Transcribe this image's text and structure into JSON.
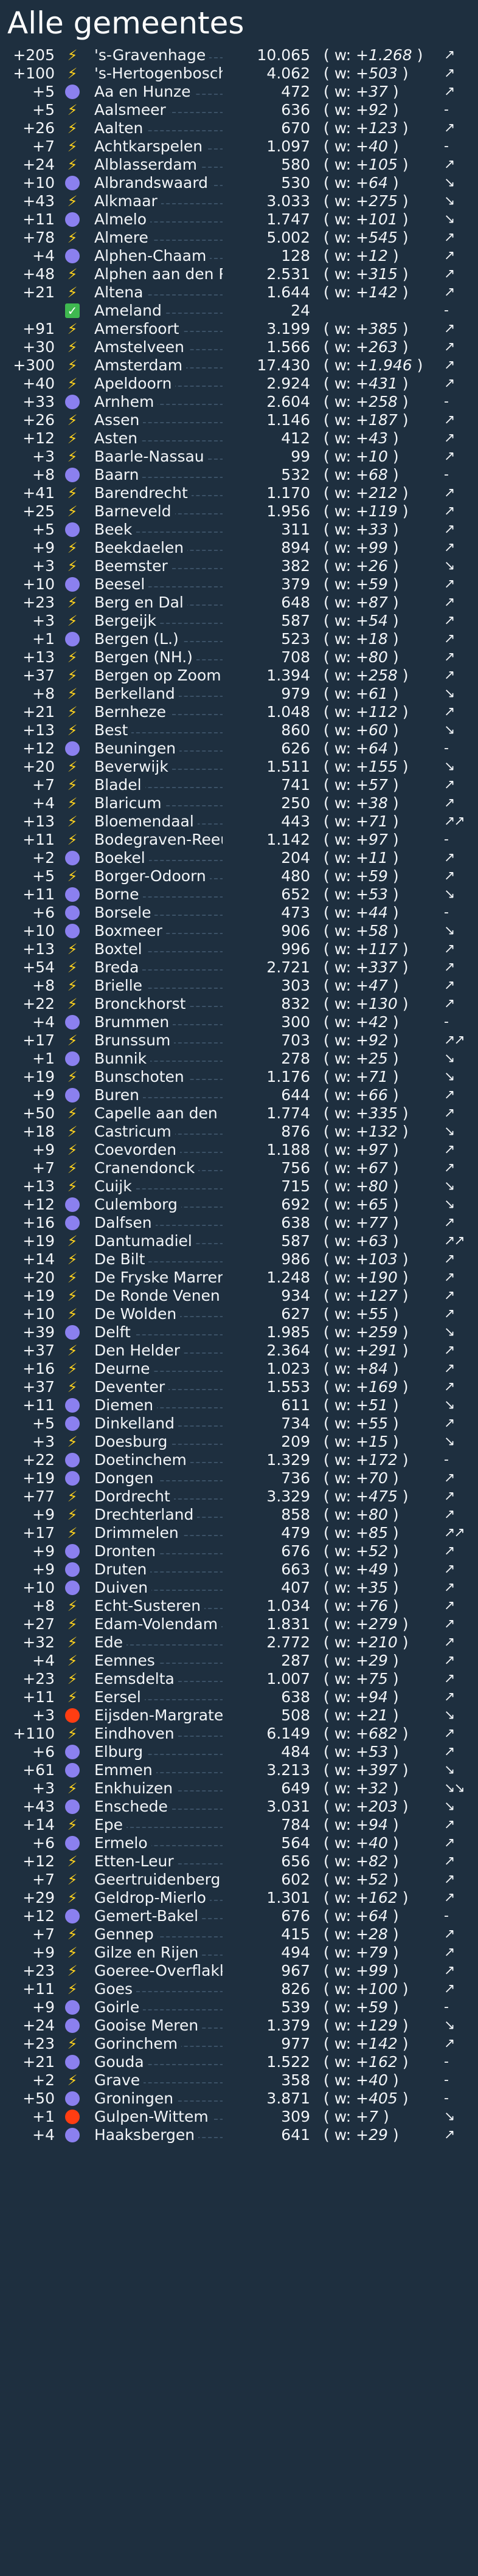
{
  "page": {
    "title": "Alle gemeentes"
  },
  "colors": {
    "background": "#1e2f3f",
    "circle": "#8b80ef",
    "circle_red": "#ff3d12",
    "bolt": "#ffd21d",
    "check": "#3fb950"
  },
  "rows": [
    {
      "delta": "+205",
      "icon": "bolt-icon",
      "name": "'s-Gravenhage",
      "value": "10.065",
      "w": "+1.268",
      "trend": "↗"
    },
    {
      "delta": "+100",
      "icon": "bolt-icon",
      "name": "'s-Hertogenbosch",
      "value": "4.062",
      "w": "+503",
      "trend": "↗"
    },
    {
      "delta": "+5",
      "icon": "circle-icon",
      "name": "Aa en Hunze",
      "value": "472",
      "w": "+37",
      "trend": "↗"
    },
    {
      "delta": "+5",
      "icon": "bolt-icon",
      "name": "Aalsmeer",
      "value": "636",
      "w": "+92",
      "trend": "-"
    },
    {
      "delta": "+26",
      "icon": "bolt-icon",
      "name": "Aalten",
      "value": "670",
      "w": "+123",
      "trend": "↗"
    },
    {
      "delta": "+7",
      "icon": "bolt-icon",
      "name": "Achtkarspelen",
      "value": "1.097",
      "w": "+40",
      "trend": "-"
    },
    {
      "delta": "+24",
      "icon": "bolt-icon",
      "name": "Alblasserdam",
      "value": "580",
      "w": "+105",
      "trend": "↗"
    },
    {
      "delta": "+10",
      "icon": "circle-icon",
      "name": "Albrandswaard",
      "value": "530",
      "w": "+64",
      "trend": "↘"
    },
    {
      "delta": "+43",
      "icon": "bolt-icon",
      "name": "Alkmaar",
      "value": "3.033",
      "w": "+275",
      "trend": "↘"
    },
    {
      "delta": "+11",
      "icon": "circle-icon",
      "name": "Almelo",
      "value": "1.747",
      "w": "+101",
      "trend": "↘"
    },
    {
      "delta": "+78",
      "icon": "bolt-icon",
      "name": "Almere",
      "value": "5.002",
      "w": "+545",
      "trend": "↗"
    },
    {
      "delta": "+4",
      "icon": "circle-icon",
      "name": "Alphen-Chaam",
      "value": "128",
      "w": "+12",
      "trend": "↗"
    },
    {
      "delta": "+48",
      "icon": "bolt-icon",
      "name": "Alphen aan den Rijn",
      "value": "2.531",
      "w": "+315",
      "trend": "↗"
    },
    {
      "delta": "+21",
      "icon": "bolt-icon",
      "name": "Altena",
      "value": "1.644",
      "w": "+142",
      "trend": "↗"
    },
    {
      "delta": "",
      "icon": "check-icon",
      "name": "Ameland",
      "value": "24",
      "w": "",
      "trend": "-"
    },
    {
      "delta": "+91",
      "icon": "bolt-icon",
      "name": "Amersfoort",
      "value": "3.199",
      "w": "+385",
      "trend": "↗"
    },
    {
      "delta": "+30",
      "icon": "bolt-icon",
      "name": "Amstelveen",
      "value": "1.566",
      "w": "+263",
      "trend": "↗"
    },
    {
      "delta": "+300",
      "icon": "bolt-icon",
      "name": "Amsterdam",
      "value": "17.430",
      "w": "+1.946",
      "trend": "↗"
    },
    {
      "delta": "+40",
      "icon": "bolt-icon",
      "name": "Apeldoorn",
      "value": "2.924",
      "w": "+431",
      "trend": "↗"
    },
    {
      "delta": "+33",
      "icon": "circle-icon",
      "name": "Arnhem",
      "value": "2.604",
      "w": "+258",
      "trend": "-"
    },
    {
      "delta": "+26",
      "icon": "bolt-icon",
      "name": "Assen",
      "value": "1.146",
      "w": "+187",
      "trend": "↗"
    },
    {
      "delta": "+12",
      "icon": "bolt-icon",
      "name": "Asten",
      "value": "412",
      "w": "+43",
      "trend": "↗"
    },
    {
      "delta": "+3",
      "icon": "bolt-icon",
      "name": "Baarle-Nassau",
      "value": "99",
      "w": "+10",
      "trend": "↗"
    },
    {
      "delta": "+8",
      "icon": "circle-icon",
      "name": "Baarn",
      "value": "532",
      "w": "+68",
      "trend": "-"
    },
    {
      "delta": "+41",
      "icon": "bolt-icon",
      "name": "Barendrecht",
      "value": "1.170",
      "w": "+212",
      "trend": "↗"
    },
    {
      "delta": "+25",
      "icon": "bolt-icon",
      "name": "Barneveld",
      "value": "1.956",
      "w": "+119",
      "trend": "↗"
    },
    {
      "delta": "+5",
      "icon": "circle-icon",
      "name": "Beek",
      "value": "311",
      "w": "+33",
      "trend": "↗"
    },
    {
      "delta": "+9",
      "icon": "bolt-icon",
      "name": "Beekdaelen",
      "value": "894",
      "w": "+99",
      "trend": "↗"
    },
    {
      "delta": "+3",
      "icon": "bolt-icon",
      "name": "Beemster",
      "value": "382",
      "w": "+26",
      "trend": "↘"
    },
    {
      "delta": "+10",
      "icon": "circle-icon",
      "name": "Beesel",
      "value": "379",
      "w": "+59",
      "trend": "↗"
    },
    {
      "delta": "+23",
      "icon": "bolt-icon",
      "name": "Berg en Dal",
      "value": "648",
      "w": "+87",
      "trend": "↗"
    },
    {
      "delta": "+3",
      "icon": "bolt-icon",
      "name": "Bergeijk",
      "value": "587",
      "w": "+54",
      "trend": "↗"
    },
    {
      "delta": "+1",
      "icon": "circle-icon",
      "name": "Bergen (L.)",
      "value": "523",
      "w": "+18",
      "trend": "↗"
    },
    {
      "delta": "+13",
      "icon": "bolt-icon",
      "name": "Bergen (NH.)",
      "value": "708",
      "w": "+80",
      "trend": "↗"
    },
    {
      "delta": "+37",
      "icon": "bolt-icon",
      "name": "Bergen op Zoom",
      "value": "1.394",
      "w": "+258",
      "trend": "↗"
    },
    {
      "delta": "+8",
      "icon": "bolt-icon",
      "name": "Berkelland",
      "value": "979",
      "w": "+61",
      "trend": "↘"
    },
    {
      "delta": "+21",
      "icon": "bolt-icon",
      "name": "Bernheze",
      "value": "1.048",
      "w": "+112",
      "trend": "↗"
    },
    {
      "delta": "+13",
      "icon": "bolt-icon",
      "name": "Best",
      "value": "860",
      "w": "+60",
      "trend": "↘"
    },
    {
      "delta": "+12",
      "icon": "circle-icon",
      "name": "Beuningen",
      "value": "626",
      "w": "+64",
      "trend": "-"
    },
    {
      "delta": "+20",
      "icon": "bolt-icon",
      "name": "Beverwijk",
      "value": "1.511",
      "w": "+155",
      "trend": "↘"
    },
    {
      "delta": "+7",
      "icon": "bolt-icon",
      "name": "Bladel",
      "value": "741",
      "w": "+57",
      "trend": "↗"
    },
    {
      "delta": "+4",
      "icon": "bolt-icon",
      "name": "Blaricum",
      "value": "250",
      "w": "+38",
      "trend": "↗"
    },
    {
      "delta": "+13",
      "icon": "bolt-icon",
      "name": "Bloemendaal",
      "value": "443",
      "w": "+71",
      "trend": "↗↗"
    },
    {
      "delta": "+11",
      "icon": "bolt-icon",
      "name": "Bodegraven-Reeuwijk",
      "value": "1.142",
      "w": "+97",
      "trend": "-"
    },
    {
      "delta": "+2",
      "icon": "circle-icon",
      "name": "Boekel",
      "value": "204",
      "w": "+11",
      "trend": "↗"
    },
    {
      "delta": "+5",
      "icon": "bolt-icon",
      "name": "Borger-Odoorn",
      "value": "480",
      "w": "+59",
      "trend": "↗"
    },
    {
      "delta": "+11",
      "icon": "circle-icon",
      "name": "Borne",
      "value": "652",
      "w": "+53",
      "trend": "↘"
    },
    {
      "delta": "+6",
      "icon": "circle-icon",
      "name": "Borsele",
      "value": "473",
      "w": "+44",
      "trend": "-"
    },
    {
      "delta": "+10",
      "icon": "circle-icon",
      "name": "Boxmeer",
      "value": "906",
      "w": "+58",
      "trend": "↘"
    },
    {
      "delta": "+13",
      "icon": "bolt-icon",
      "name": "Boxtel",
      "value": "996",
      "w": "+117",
      "trend": "↗"
    },
    {
      "delta": "+54",
      "icon": "bolt-icon",
      "name": "Breda",
      "value": "2.721",
      "w": "+337",
      "trend": "↗"
    },
    {
      "delta": "+8",
      "icon": "bolt-icon",
      "name": "Brielle",
      "value": "303",
      "w": "+47",
      "trend": "↗"
    },
    {
      "delta": "+22",
      "icon": "bolt-icon",
      "name": "Bronckhorst",
      "value": "832",
      "w": "+130",
      "trend": "↗"
    },
    {
      "delta": "+4",
      "icon": "circle-icon",
      "name": "Brummen",
      "value": "300",
      "w": "+42",
      "trend": "-"
    },
    {
      "delta": "+17",
      "icon": "bolt-icon",
      "name": "Brunssum",
      "value": "703",
      "w": "+92",
      "trend": "↗↗"
    },
    {
      "delta": "+1",
      "icon": "circle-icon",
      "name": "Bunnik",
      "value": "278",
      "w": "+25",
      "trend": "↘"
    },
    {
      "delta": "+19",
      "icon": "bolt-icon",
      "name": "Bunschoten",
      "value": "1.176",
      "w": "+71",
      "trend": "↘"
    },
    {
      "delta": "+9",
      "icon": "circle-icon",
      "name": "Buren",
      "value": "644",
      "w": "+66",
      "trend": "↗"
    },
    {
      "delta": "+50",
      "icon": "bolt-icon",
      "name": "Capelle aan den IJssel",
      "value": "1.774",
      "w": "+335",
      "trend": "↗"
    },
    {
      "delta": "+18",
      "icon": "bolt-icon",
      "name": "Castricum",
      "value": "876",
      "w": "+132",
      "trend": "↘"
    },
    {
      "delta": "+9",
      "icon": "bolt-icon",
      "name": "Coevorden",
      "value": "1.188",
      "w": "+97",
      "trend": "↗"
    },
    {
      "delta": "+7",
      "icon": "bolt-icon",
      "name": "Cranendonck",
      "value": "756",
      "w": "+67",
      "trend": "↗"
    },
    {
      "delta": "+13",
      "icon": "bolt-icon",
      "name": "Cuijk",
      "value": "715",
      "w": "+80",
      "trend": "↘"
    },
    {
      "delta": "+12",
      "icon": "circle-icon",
      "name": "Culemborg",
      "value": "692",
      "w": "+65",
      "trend": "↘"
    },
    {
      "delta": "+16",
      "icon": "circle-icon",
      "name": "Dalfsen",
      "value": "638",
      "w": "+77",
      "trend": "↗"
    },
    {
      "delta": "+19",
      "icon": "bolt-icon",
      "name": "Dantumadiel",
      "value": "587",
      "w": "+63",
      "trend": "↗↗"
    },
    {
      "delta": "+14",
      "icon": "bolt-icon",
      "name": "De Bilt",
      "value": "986",
      "w": "+103",
      "trend": "↗"
    },
    {
      "delta": "+20",
      "icon": "bolt-icon",
      "name": "De Fryske Marren",
      "value": "1.248",
      "w": "+190",
      "trend": "↗"
    },
    {
      "delta": "+19",
      "icon": "bolt-icon",
      "name": "De Ronde Venen",
      "value": "934",
      "w": "+127",
      "trend": "↗"
    },
    {
      "delta": "+10",
      "icon": "bolt-icon",
      "name": "De Wolden",
      "value": "627",
      "w": "+55",
      "trend": "↗"
    },
    {
      "delta": "+39",
      "icon": "circle-icon",
      "name": "Delft",
      "value": "1.985",
      "w": "+259",
      "trend": "↘"
    },
    {
      "delta": "+37",
      "icon": "bolt-icon",
      "name": "Den Helder",
      "value": "2.364",
      "w": "+291",
      "trend": "↗"
    },
    {
      "delta": "+16",
      "icon": "bolt-icon",
      "name": "Deurne",
      "value": "1.023",
      "w": "+84",
      "trend": "↗"
    },
    {
      "delta": "+37",
      "icon": "bolt-icon",
      "name": "Deventer",
      "value": "1.553",
      "w": "+169",
      "trend": "↗"
    },
    {
      "delta": "+11",
      "icon": "circle-icon",
      "name": "Diemen",
      "value": "611",
      "w": "+51",
      "trend": "↘"
    },
    {
      "delta": "+5",
      "icon": "circle-icon",
      "name": "Dinkelland",
      "value": "734",
      "w": "+55",
      "trend": "↗"
    },
    {
      "delta": "+3",
      "icon": "bolt-icon",
      "name": "Doesburg",
      "value": "209",
      "w": "+15",
      "trend": "↘"
    },
    {
      "delta": "+22",
      "icon": "circle-icon",
      "name": "Doetinchem",
      "value": "1.329",
      "w": "+172",
      "trend": "-"
    },
    {
      "delta": "+19",
      "icon": "circle-icon",
      "name": "Dongen",
      "value": "736",
      "w": "+70",
      "trend": "↗"
    },
    {
      "delta": "+77",
      "icon": "bolt-icon",
      "name": "Dordrecht",
      "value": "3.329",
      "w": "+475",
      "trend": "↗"
    },
    {
      "delta": "+9",
      "icon": "bolt-icon",
      "name": "Drechterland",
      "value": "858",
      "w": "+80",
      "trend": "↗"
    },
    {
      "delta": "+17",
      "icon": "bolt-icon",
      "name": "Drimmelen",
      "value": "479",
      "w": "+85",
      "trend": "↗↗"
    },
    {
      "delta": "+9",
      "icon": "circle-icon",
      "name": "Dronten",
      "value": "676",
      "w": "+52",
      "trend": "↗"
    },
    {
      "delta": "+9",
      "icon": "circle-icon",
      "name": "Druten",
      "value": "663",
      "w": "+49",
      "trend": "↗"
    },
    {
      "delta": "+10",
      "icon": "circle-icon",
      "name": "Duiven",
      "value": "407",
      "w": "+35",
      "trend": "↗"
    },
    {
      "delta": "+8",
      "icon": "bolt-icon",
      "name": "Echt-Susteren",
      "value": "1.034",
      "w": "+76",
      "trend": "↗"
    },
    {
      "delta": "+27",
      "icon": "bolt-icon",
      "name": "Edam-Volendam",
      "value": "1.831",
      "w": "+279",
      "trend": "↗"
    },
    {
      "delta": "+32",
      "icon": "bolt-icon",
      "name": "Ede",
      "value": "2.772",
      "w": "+210",
      "trend": "↗"
    },
    {
      "delta": "+4",
      "icon": "bolt-icon",
      "name": "Eemnes",
      "value": "287",
      "w": "+29",
      "trend": "↗"
    },
    {
      "delta": "+23",
      "icon": "bolt-icon",
      "name": "Eemsdelta",
      "value": "1.007",
      "w": "+75",
      "trend": "↗"
    },
    {
      "delta": "+11",
      "icon": "bolt-icon",
      "name": "Eersel",
      "value": "638",
      "w": "+94",
      "trend": "↗"
    },
    {
      "delta": "+3",
      "icon": "red-circle-icon",
      "name": "Eijsden-Margraten",
      "value": "508",
      "w": "+21",
      "trend": "↘"
    },
    {
      "delta": "+110",
      "icon": "bolt-icon",
      "name": "Eindhoven",
      "value": "6.149",
      "w": "+682",
      "trend": "↗"
    },
    {
      "delta": "+6",
      "icon": "circle-icon",
      "name": "Elburg",
      "value": "484",
      "w": "+53",
      "trend": "↗"
    },
    {
      "delta": "+61",
      "icon": "circle-icon",
      "name": "Emmen",
      "value": "3.213",
      "w": "+397",
      "trend": "↘"
    },
    {
      "delta": "+3",
      "icon": "bolt-icon",
      "name": "Enkhuizen",
      "value": "649",
      "w": "+32",
      "trend": "↘↘"
    },
    {
      "delta": "+43",
      "icon": "circle-icon",
      "name": "Enschede",
      "value": "3.031",
      "w": "+203",
      "trend": "↘"
    },
    {
      "delta": "+14",
      "icon": "bolt-icon",
      "name": "Epe",
      "value": "784",
      "w": "+94",
      "trend": "↗"
    },
    {
      "delta": "+6",
      "icon": "circle-icon",
      "name": "Ermelo",
      "value": "564",
      "w": "+40",
      "trend": "↗"
    },
    {
      "delta": "+12",
      "icon": "bolt-icon",
      "name": "Etten-Leur",
      "value": "656",
      "w": "+82",
      "trend": "↗"
    },
    {
      "delta": "+7",
      "icon": "bolt-icon",
      "name": "Geertruidenberg",
      "value": "602",
      "w": "+52",
      "trend": "↗"
    },
    {
      "delta": "+29",
      "icon": "bolt-icon",
      "name": "Geldrop-Mierlo",
      "value": "1.301",
      "w": "+162",
      "trend": "↗"
    },
    {
      "delta": "+12",
      "icon": "circle-icon",
      "name": "Gemert-Bakel",
      "value": "676",
      "w": "+64",
      "trend": "-"
    },
    {
      "delta": "+7",
      "icon": "bolt-icon",
      "name": "Gennep",
      "value": "415",
      "w": "+28",
      "trend": "↗"
    },
    {
      "delta": "+9",
      "icon": "bolt-icon",
      "name": "Gilze en Rijen",
      "value": "494",
      "w": "+79",
      "trend": "↗"
    },
    {
      "delta": "+23",
      "icon": "bolt-icon",
      "name": "Goeree-Overflakkee",
      "value": "967",
      "w": "+99",
      "trend": "↗"
    },
    {
      "delta": "+11",
      "icon": "bolt-icon",
      "name": "Goes",
      "value": "826",
      "w": "+100",
      "trend": "↗"
    },
    {
      "delta": "+9",
      "icon": "circle-icon",
      "name": "Goirle",
      "value": "539",
      "w": "+59",
      "trend": "-"
    },
    {
      "delta": "+24",
      "icon": "circle-icon",
      "name": "Gooise Meren",
      "value": "1.379",
      "w": "+129",
      "trend": "↘"
    },
    {
      "delta": "+23",
      "icon": "bolt-icon",
      "name": "Gorinchem",
      "value": "977",
      "w": "+142",
      "trend": "↗"
    },
    {
      "delta": "+21",
      "icon": "circle-icon",
      "name": "Gouda",
      "value": "1.522",
      "w": "+162",
      "trend": "-"
    },
    {
      "delta": "+2",
      "icon": "bolt-icon",
      "name": "Grave",
      "value": "358",
      "w": "+40",
      "trend": "-"
    },
    {
      "delta": "+50",
      "icon": "circle-icon",
      "name": "Groningen",
      "value": "3.871",
      "w": "+405",
      "trend": "-"
    },
    {
      "delta": "+1",
      "icon": "red-circle-icon",
      "name": "Gulpen-Wittem",
      "value": "309",
      "w": "+7",
      "trend": "↘"
    },
    {
      "delta": "+4",
      "icon": "circle-icon",
      "name": "Haaksbergen",
      "value": "641",
      "w": "+29",
      "trend": "↗"
    }
  ]
}
